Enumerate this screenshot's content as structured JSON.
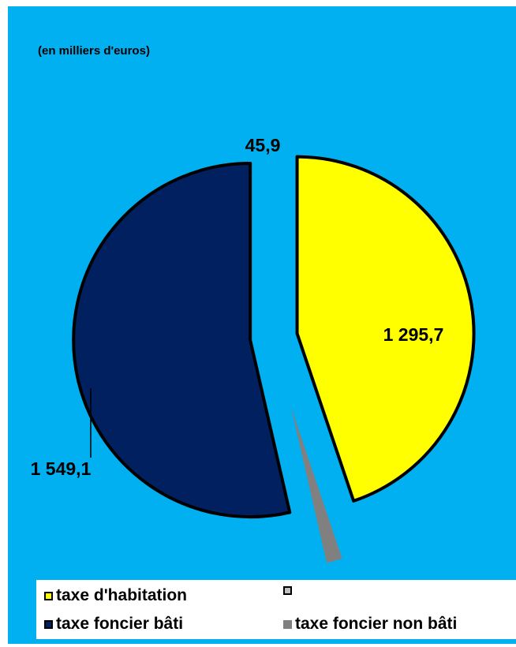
{
  "chart_data": {
    "type": "pie",
    "subtitle": "(en milliers d'euros)",
    "slices": [
      {
        "name": "taxe d'habitation",
        "value": 1295.7,
        "label": "1 295,7",
        "color": "#ffff00"
      },
      {
        "name": "taxe foncier non bâti",
        "value": 45.9,
        "label": "45,9",
        "color": "#808080"
      },
      {
        "name": "taxe foncier bâti",
        "value": 1549.1,
        "label": "1 549,1",
        "color": "#002060"
      }
    ],
    "legend": {
      "placement": "bottom",
      "entries": [
        {
          "label": "taxe d'habitation",
          "color": "#ffff00"
        },
        {
          "label": "",
          "color": "#c0c0c0"
        },
        {
          "label": "taxe foncier bâti",
          "color": "#002060"
        },
        {
          "label": "taxe foncier non bâti",
          "color": "#808080"
        }
      ]
    },
    "background_color": "#00b0f0"
  }
}
